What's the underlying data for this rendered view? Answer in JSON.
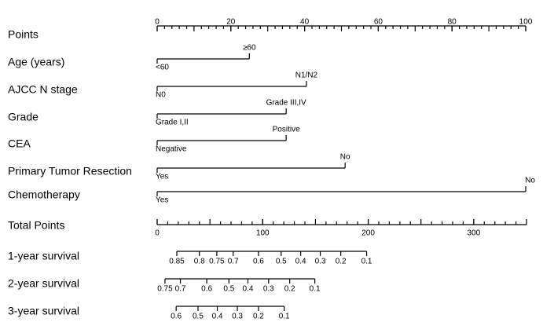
{
  "chart_data": {
    "type": "nomogram",
    "points_axis": {
      "name": "Points",
      "xlim": [
        0,
        100
      ],
      "xticks": [
        0,
        20,
        40,
        60,
        80,
        100
      ],
      "minor_ticks": [
        0,
        2,
        4,
        6,
        8,
        10,
        12,
        14,
        16,
        18,
        20,
        22,
        24,
        26,
        28,
        30,
        32,
        34,
        36,
        38,
        40,
        42,
        44,
        46,
        48,
        50,
        52,
        54,
        56,
        58,
        60,
        62,
        64,
        66,
        68,
        70,
        72,
        74,
        76,
        78,
        80,
        82,
        84,
        86,
        88,
        90,
        92,
        94,
        96,
        98,
        100
      ]
    },
    "variables": [
      {
        "name": "Age (years)",
        "levels": [
          {
            "label": "<60",
            "points": 0
          },
          {
            "label": "≥60",
            "points": 25
          }
        ]
      },
      {
        "name": "AJCC N stage",
        "levels": [
          {
            "label": "N0",
            "points": 0
          },
          {
            "label": "N1/N2",
            "points": 40.5
          }
        ]
      },
      {
        "name": "Grade",
        "levels": [
          {
            "label": "Grade I,II",
            "points": 0
          },
          {
            "label": "Grade III,IV",
            "points": 35
          }
        ]
      },
      {
        "name": "CEA",
        "levels": [
          {
            "label": "Negative",
            "points": 0
          },
          {
            "label": "Positive",
            "points": 35
          }
        ]
      },
      {
        "name": "Primary Tumor Resection",
        "levels": [
          {
            "label": "Yes",
            "points": 0
          },
          {
            "label": "No",
            "points": 51
          }
        ]
      },
      {
        "name": "Chemotherapy",
        "levels": [
          {
            "label": "Yes",
            "points": 0
          },
          {
            "label": "No",
            "points": 100
          }
        ]
      }
    ],
    "total_axis": {
      "name": "Total Points",
      "xlim": [
        0,
        350
      ],
      "xticks": [
        0,
        100,
        200,
        300
      ],
      "minor_ticks": [
        0,
        10,
        20,
        30,
        40,
        50,
        60,
        70,
        80,
        90,
        100,
        110,
        120,
        130,
        140,
        150,
        160,
        170,
        180,
        190,
        200,
        210,
        220,
        230,
        240,
        250,
        260,
        270,
        280,
        290,
        300,
        310,
        320,
        330,
        340,
        350
      ]
    },
    "survival": [
      {
        "name": "1-year survival",
        "probabilities": [
          0.85,
          0.8,
          0.75,
          0.7,
          0.6,
          0.5,
          0.4,
          0.3,
          0.2,
          0.1
        ],
        "points": [
          18.6,
          40,
          56.5,
          72,
          96,
          117.5,
          136,
          154.6,
          174,
          198.5
        ]
      },
      {
        "name": "2-year survival",
        "probabilities": [
          0.75,
          0.7,
          0.6,
          0.5,
          0.4,
          0.3,
          0.2,
          0.1
        ],
        "points": [
          7.4,
          22,
          47,
          68,
          86,
          105.6,
          125.6,
          149.4
        ]
      },
      {
        "name": "3-year survival",
        "probabilities": [
          0.6,
          0.5,
          0.4,
          0.3,
          0.2,
          0.1
        ],
        "points": [
          18,
          38.7,
          57,
          76,
          96,
          120.4
        ]
      }
    ]
  }
}
